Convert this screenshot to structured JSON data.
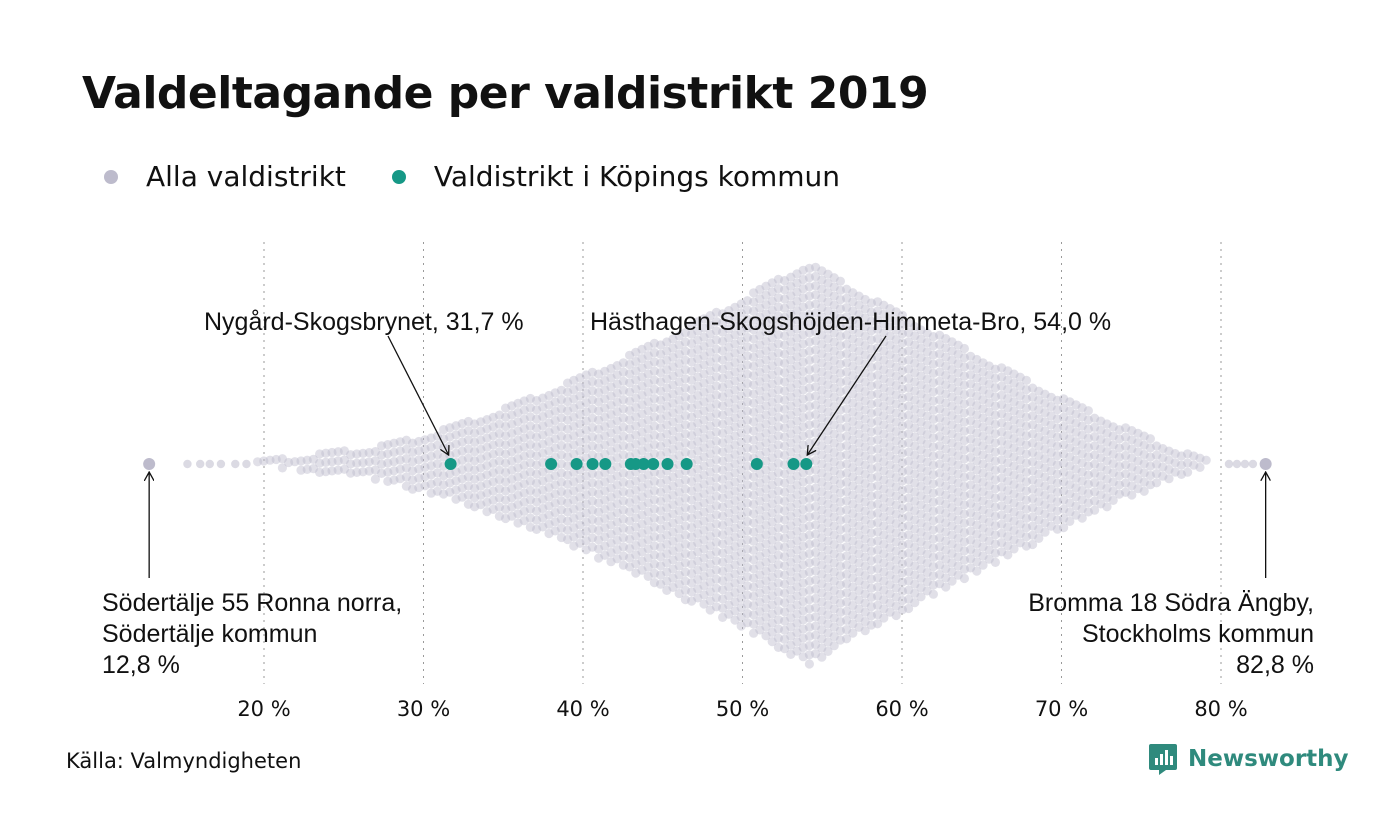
{
  "title": "Valdeltagande per valdistrikt 2019",
  "legend": [
    {
      "label": "Alla valdistrikt",
      "color": "#bdbbcc"
    },
    {
      "label": "Valdistrikt i Köpings kommun",
      "color": "#169886"
    }
  ],
  "source": "Källa: Valmyndigheten",
  "brand": {
    "name": "Newsworthy",
    "color": "#2f8a7d",
    "icon": "newsworthy-bar-chart-logo"
  },
  "chart_data": {
    "type": "scatter",
    "subtype": "beeswarm",
    "x_unit": "%",
    "xlim": [
      10,
      86
    ],
    "ticks": [
      {
        "value": 20,
        "label": "20 %"
      },
      {
        "value": 30,
        "label": "30 %"
      },
      {
        "value": 40,
        "label": "40 %"
      },
      {
        "value": 50,
        "label": "50 %"
      },
      {
        "value": 60,
        "label": "60 %"
      },
      {
        "value": 70,
        "label": "70 %"
      },
      {
        "value": 80,
        "label": "80 %"
      }
    ],
    "grid": "vertical-dotted",
    "distribution_peak": 54,
    "series": [
      {
        "name": "Alla valdistrikt",
        "color": "#bdbbcc",
        "min": 12.8,
        "max": 82.8,
        "sparse_tail_values": [
          15.2,
          16.0,
          16.6,
          17.3,
          18.2,
          18.9,
          80.5,
          81.0,
          81.5,
          82.0
        ]
      },
      {
        "name": "Valdistrikt i Köpings kommun",
        "color": "#169886",
        "values": [
          31.7,
          38.0,
          39.6,
          40.6,
          41.4,
          43.0,
          43.3,
          43.8,
          44.4,
          45.3,
          46.5,
          50.9,
          53.2,
          54.0
        ]
      }
    ],
    "annotations": [
      {
        "lines": [
          "Nygård-Skogsbrynet, 31,7 %"
        ],
        "value": 31.7,
        "placement": "above"
      },
      {
        "lines": [
          "Hästhagen-Skogshöjden-Himmeta-Bro, 54,0 %"
        ],
        "value": 54.0,
        "placement": "above"
      },
      {
        "lines": [
          "Södertälje 55 Ronna norra,",
          "Södertälje kommun",
          "12,8 %"
        ],
        "value": 12.8,
        "placement": "below-left"
      },
      {
        "lines": [
          "Bromma 18 Södra Ängby,",
          "Stockholms kommun",
          "82,8 %"
        ],
        "value": 82.8,
        "placement": "below-right"
      }
    ]
  }
}
